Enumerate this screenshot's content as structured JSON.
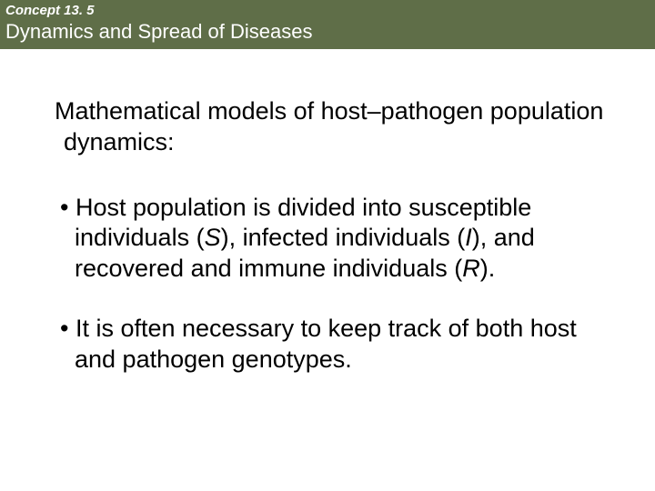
{
  "header": {
    "bg_color": "#5f6e48",
    "concept_label": "Concept 13. 5",
    "title": "Dynamics and Spread of Diseases"
  },
  "content": {
    "intro": "Mathematical models of host–pathogen population dynamics:",
    "bullet1_pre": "• Host population is divided into susceptible individuals (",
    "bullet1_s": "S",
    "bullet1_mid1": "), infected individuals (",
    "bullet1_i": "I",
    "bullet1_mid2": "), and recovered and immune individuals (",
    "bullet1_r": "R",
    "bullet1_end": ").",
    "bullet2": "• It is often necessary to keep track of both host and pathogen genotypes."
  }
}
